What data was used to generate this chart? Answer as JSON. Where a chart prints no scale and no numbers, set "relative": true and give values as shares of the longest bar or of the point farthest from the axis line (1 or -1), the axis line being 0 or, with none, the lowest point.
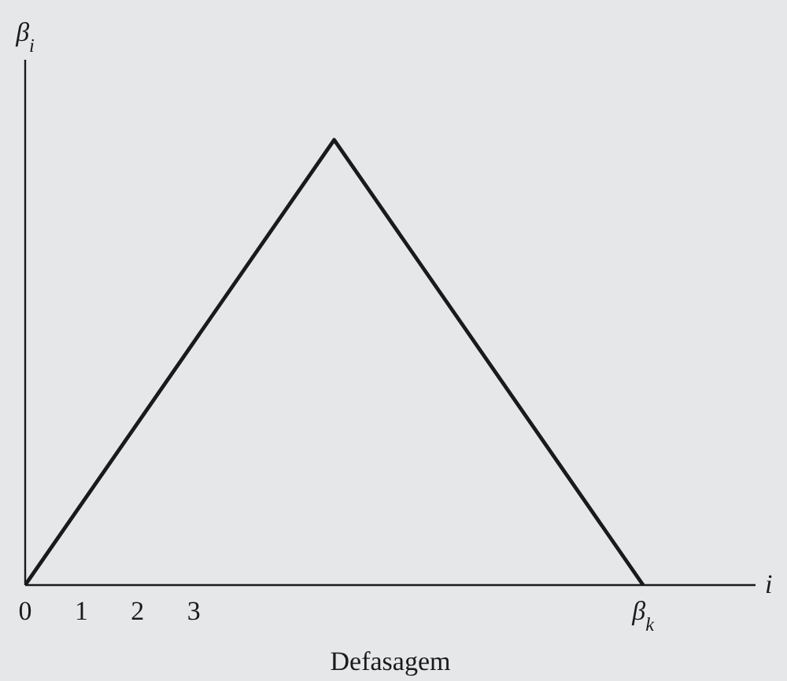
{
  "chart_data": {
    "type": "line",
    "x": [
      0,
      5.5,
      11
    ],
    "values": [
      0,
      1,
      0
    ],
    "relative": true,
    "color": "#1a1a1a",
    "xlim": [
      0,
      13
    ],
    "xticks": [
      0,
      1,
      2,
      3,
      {
        "value": 11,
        "label": "β$_{k}$"
      }
    ],
    "xlabel": "Defasagem",
    "ylabel": "β$_{i}$",
    "annotations": [
      "i"
    ]
  }
}
